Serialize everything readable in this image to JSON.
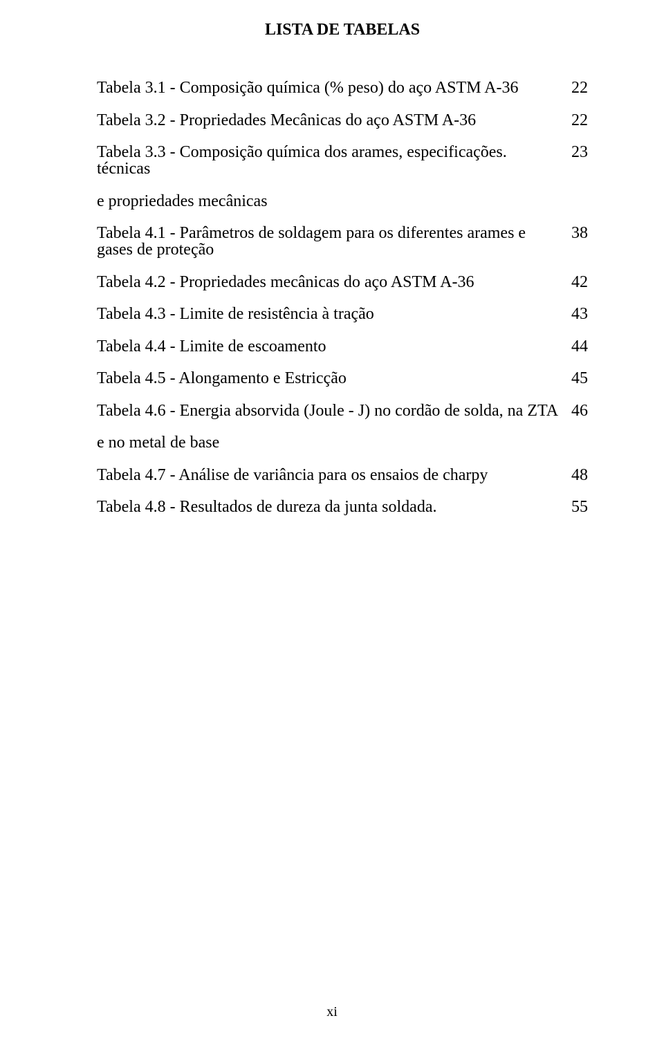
{
  "title": "LISTA DE TABELAS",
  "entries": [
    {
      "label": "Tabela 3.1 - Composição química (% peso) do aço ASTM A-36",
      "page": "22"
    },
    {
      "label": "Tabela 3.2 - Propriedades Mecânicas do aço ASTM A-36",
      "page": "22"
    },
    {
      "label": "Tabela 3.3 - Composição química dos arames, especificações. técnicas",
      "page": "23",
      "continuation": "e propriedades mecânicas"
    },
    {
      "label": "Tabela 4.1 - Parâmetros de soldagem para os diferentes arames e gases de proteção",
      "page": "38"
    },
    {
      "label": "Tabela 4.2 - Propriedades mecânicas do aço ASTM A-36",
      "page": "42"
    },
    {
      "label": "Tabela 4.3 - Limite de resistência à tração",
      "page": "43"
    },
    {
      "label": "Tabela 4.4 - Limite de escoamento",
      "page": "44"
    },
    {
      "label": "Tabela 4.5 - Alongamento e Estricção",
      "page": "45"
    },
    {
      "label": "Tabela 4.6 - Energia absorvida (Joule - J) no cordão de solda, na ZTA",
      "page": "46",
      "continuation": " e no metal de base"
    },
    {
      "label": "Tabela 4.7 - Análise de variância para os ensaios de charpy",
      "page": "48"
    },
    {
      "label": "Tabela 4.8 - Resultados de dureza da junta soldada.",
      "page": "55"
    }
  ],
  "footer": "xi"
}
